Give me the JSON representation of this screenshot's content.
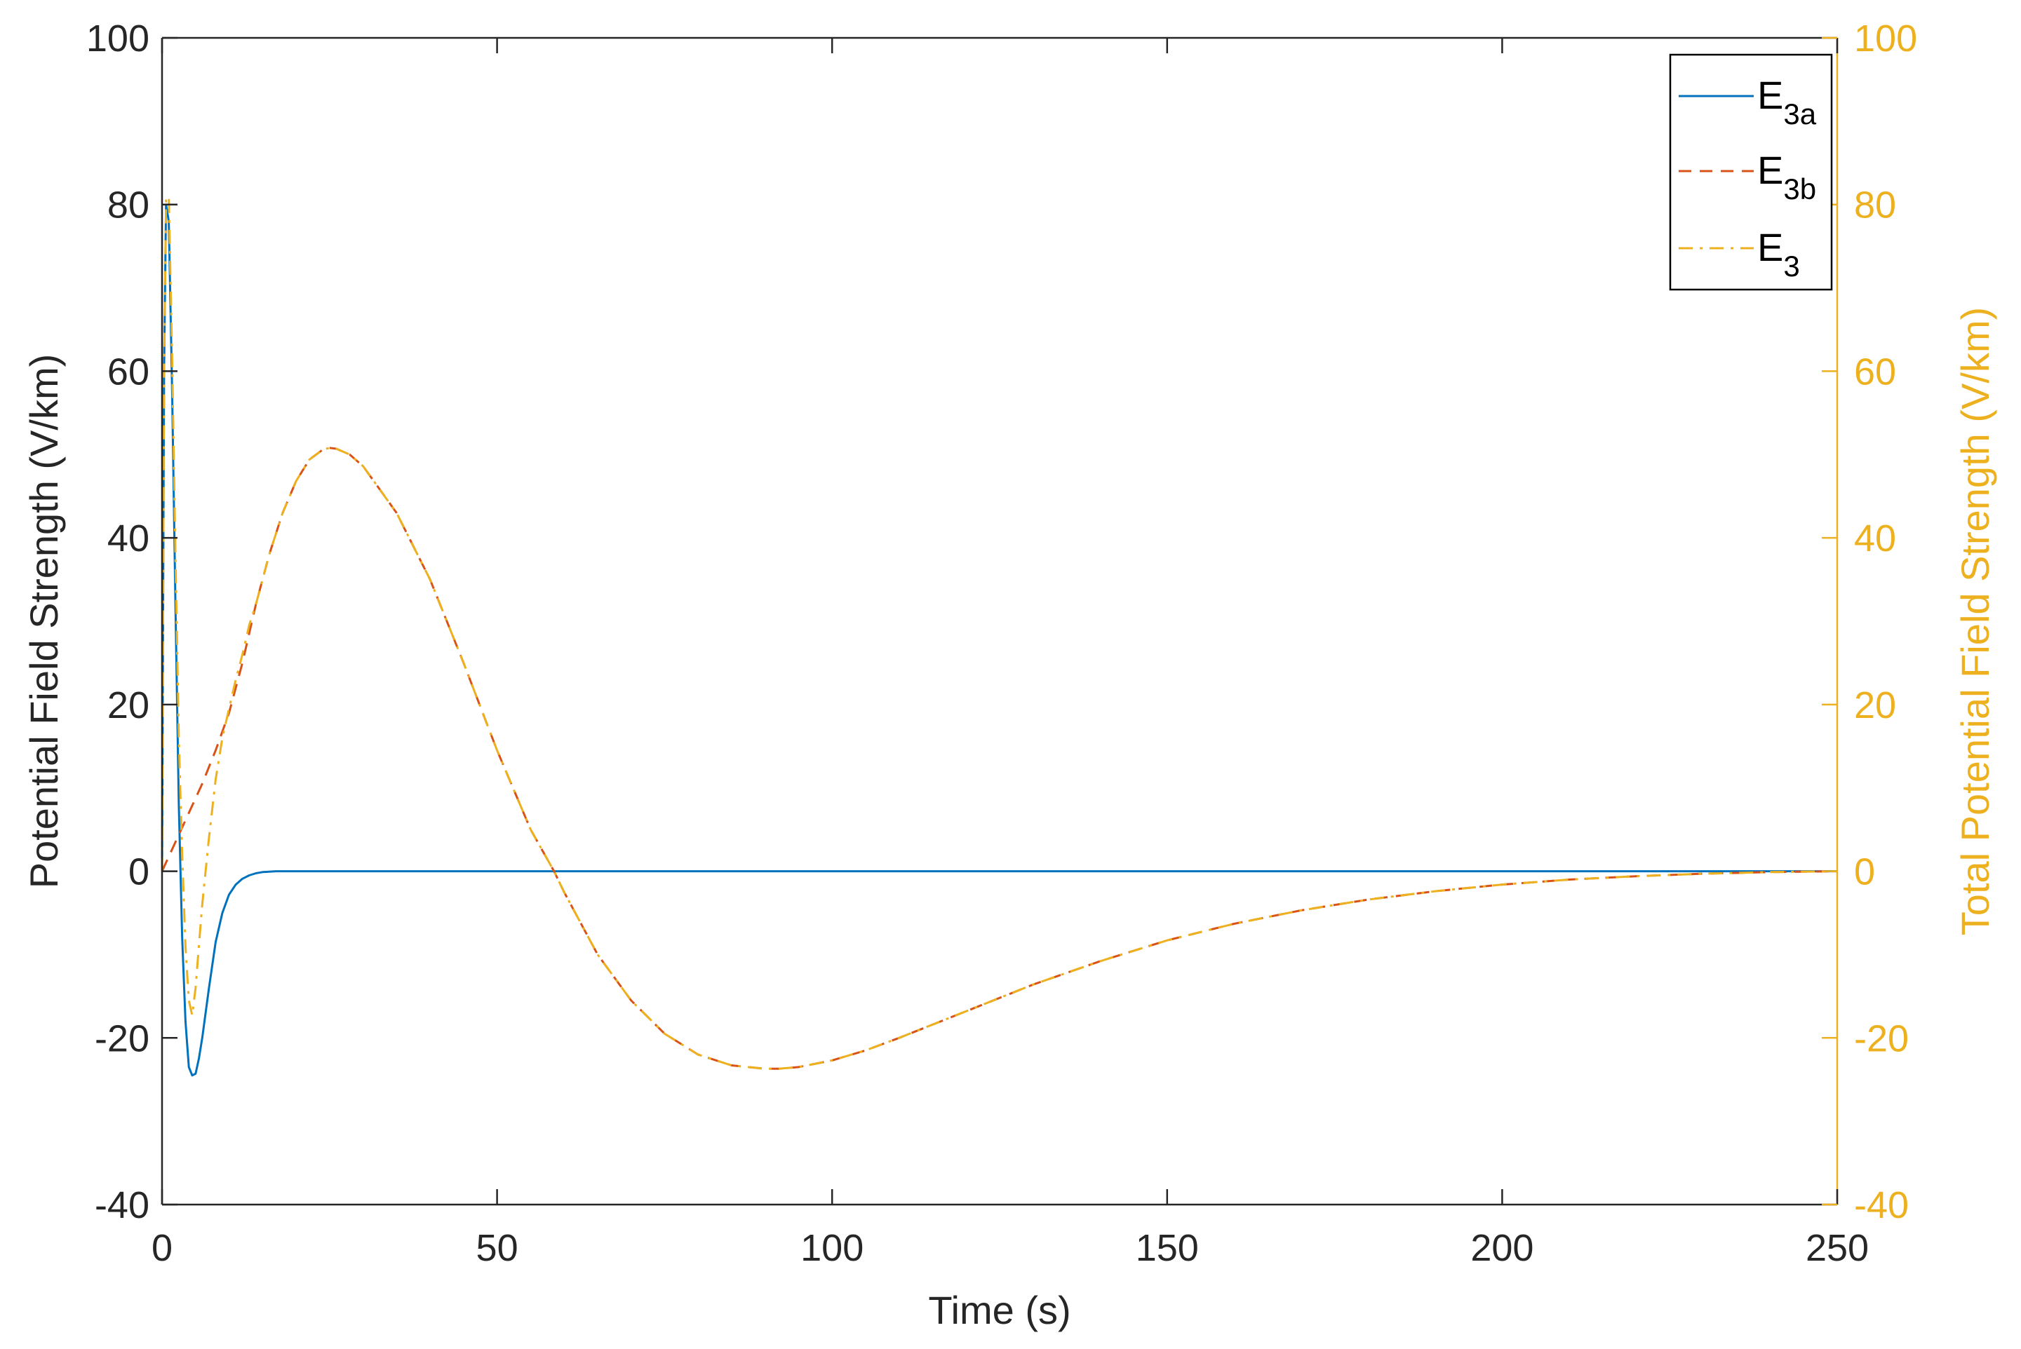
{
  "chart_data": {
    "type": "line",
    "xlabel": "Time (s)",
    "ylabel_left": "Potential Field Strength (V/km)",
    "ylabel_right": "Total Potential Field Strength (V/km)",
    "xlim": [
      0,
      250
    ],
    "ylim_left": [
      -40,
      100
    ],
    "ylim_right": [
      -40,
      100
    ],
    "xticks": [
      "0",
      "50",
      "100",
      "150",
      "200",
      "250"
    ],
    "yticks_left": [
      "-40",
      "-20",
      "0",
      "20",
      "40",
      "60",
      "80",
      "100"
    ],
    "yticks_right": [
      "-40",
      "-20",
      "0",
      "20",
      "40",
      "60",
      "80",
      "100"
    ],
    "grid": false,
    "legend_position": "top-right",
    "series": [
      {
        "label_main": "E",
        "label_sub": "3a",
        "axis": "left",
        "color": "#0072BD",
        "dash": "solid",
        "x": [
          0,
          0.3,
          0.6,
          1.0,
          1.5,
          2.0,
          2.5,
          3.0,
          3.5,
          4.0,
          4.5,
          5.0,
          5.5,
          6.0,
          7.0,
          8.0,
          9.0,
          10.0,
          11.0,
          12.0,
          13.0,
          14.0,
          15.0,
          17.0,
          20.0,
          30.0,
          50.0,
          100.0,
          150.0,
          200.0,
          250.0
        ],
        "y": [
          0,
          60,
          80,
          78,
          58,
          32,
          8,
          -8,
          -18,
          -23.5,
          -24.5,
          -24.3,
          -22.5,
          -20,
          -14,
          -8.5,
          -5,
          -2.8,
          -1.6,
          -0.9,
          -0.5,
          -0.25,
          -0.1,
          0,
          0,
          0,
          0,
          0,
          0,
          0,
          0
        ]
      },
      {
        "label_main": "E",
        "label_sub": "3b",
        "axis": "left",
        "color": "#D95319",
        "dash": "dashed",
        "x": [
          0,
          2,
          4,
          6,
          8,
          10,
          12,
          14,
          16,
          18,
          20,
          22,
          24,
          25,
          26,
          28,
          30,
          35,
          40,
          45,
          50,
          55,
          58.5,
          60,
          65,
          70,
          75,
          80,
          85,
          90,
          92,
          95,
          100,
          105,
          110,
          120,
          130,
          140,
          150,
          160,
          170,
          180,
          190,
          200,
          210,
          220,
          230,
          240,
          250
        ],
        "y": [
          0,
          3.5,
          7,
          10.5,
          14.5,
          19,
          25,
          32,
          38,
          43,
          46.8,
          49.4,
          50.6,
          50.8,
          50.7,
          50,
          48.6,
          43,
          35,
          25,
          14.5,
          5,
          0,
          -2.5,
          -10,
          -15.5,
          -19.5,
          -22,
          -23.3,
          -23.7,
          -23.7,
          -23.5,
          -22.7,
          -21.5,
          -20,
          -16.8,
          -13.6,
          -10.8,
          -8.3,
          -6.3,
          -4.7,
          -3.4,
          -2.4,
          -1.6,
          -1,
          -0.6,
          -0.3,
          -0.1,
          0
        ]
      },
      {
        "label_main": "E",
        "label_sub": "3",
        "axis": "right",
        "color": "#EDB120",
        "dash": "dashdot",
        "x": [
          0,
          0.3,
          0.6,
          1.0,
          1.5,
          2.0,
          2.5,
          3.0,
          3.5,
          4.0,
          4.5,
          5.0,
          5.5,
          6.0,
          7.0,
          8.0,
          9.0,
          10.0,
          11.0,
          12.0,
          13.0,
          14.0,
          15.0,
          16.0,
          18.0,
          20.0,
          22.0,
          24.0,
          25.0,
          26.0,
          28.0,
          30.0,
          35.0,
          40.0,
          45.0,
          50.0,
          55.0,
          58.5,
          60.0,
          65.0,
          70.0,
          75.0,
          80.0,
          85.0,
          90.0,
          92.0,
          95.0,
          100.0,
          105.0,
          110.0,
          120.0,
          130.0,
          140.0,
          150.0,
          160.0,
          170.0,
          180.0,
          190.0,
          200.0,
          210.0,
          220.0,
          230.0,
          240.0,
          250.0
        ],
        "y": [
          0,
          60,
          80.5,
          81,
          62,
          38,
          16,
          2,
          -9,
          -15.5,
          -17.3,
          -14,
          -9,
          -4,
          4,
          11,
          16,
          19.5,
          23,
          26,
          29.5,
          32,
          35,
          38,
          43,
          46.8,
          49.4,
          50.6,
          50.8,
          50.7,
          50,
          48.6,
          43,
          35,
          25,
          14.5,
          5,
          0,
          -2.5,
          -10,
          -15.5,
          -19.5,
          -22,
          -23.3,
          -23.7,
          -23.7,
          -23.5,
          -22.7,
          -21.5,
          -20,
          -16.8,
          -13.6,
          -10.8,
          -8.3,
          -6.3,
          -4.7,
          -3.4,
          -2.4,
          -1.6,
          -1,
          -0.6,
          -0.3,
          -0.1,
          0
        ]
      }
    ]
  },
  "colors": {
    "left_axis": "#262626",
    "right_axis": "#EDB120",
    "legend_border": "#000000"
  }
}
